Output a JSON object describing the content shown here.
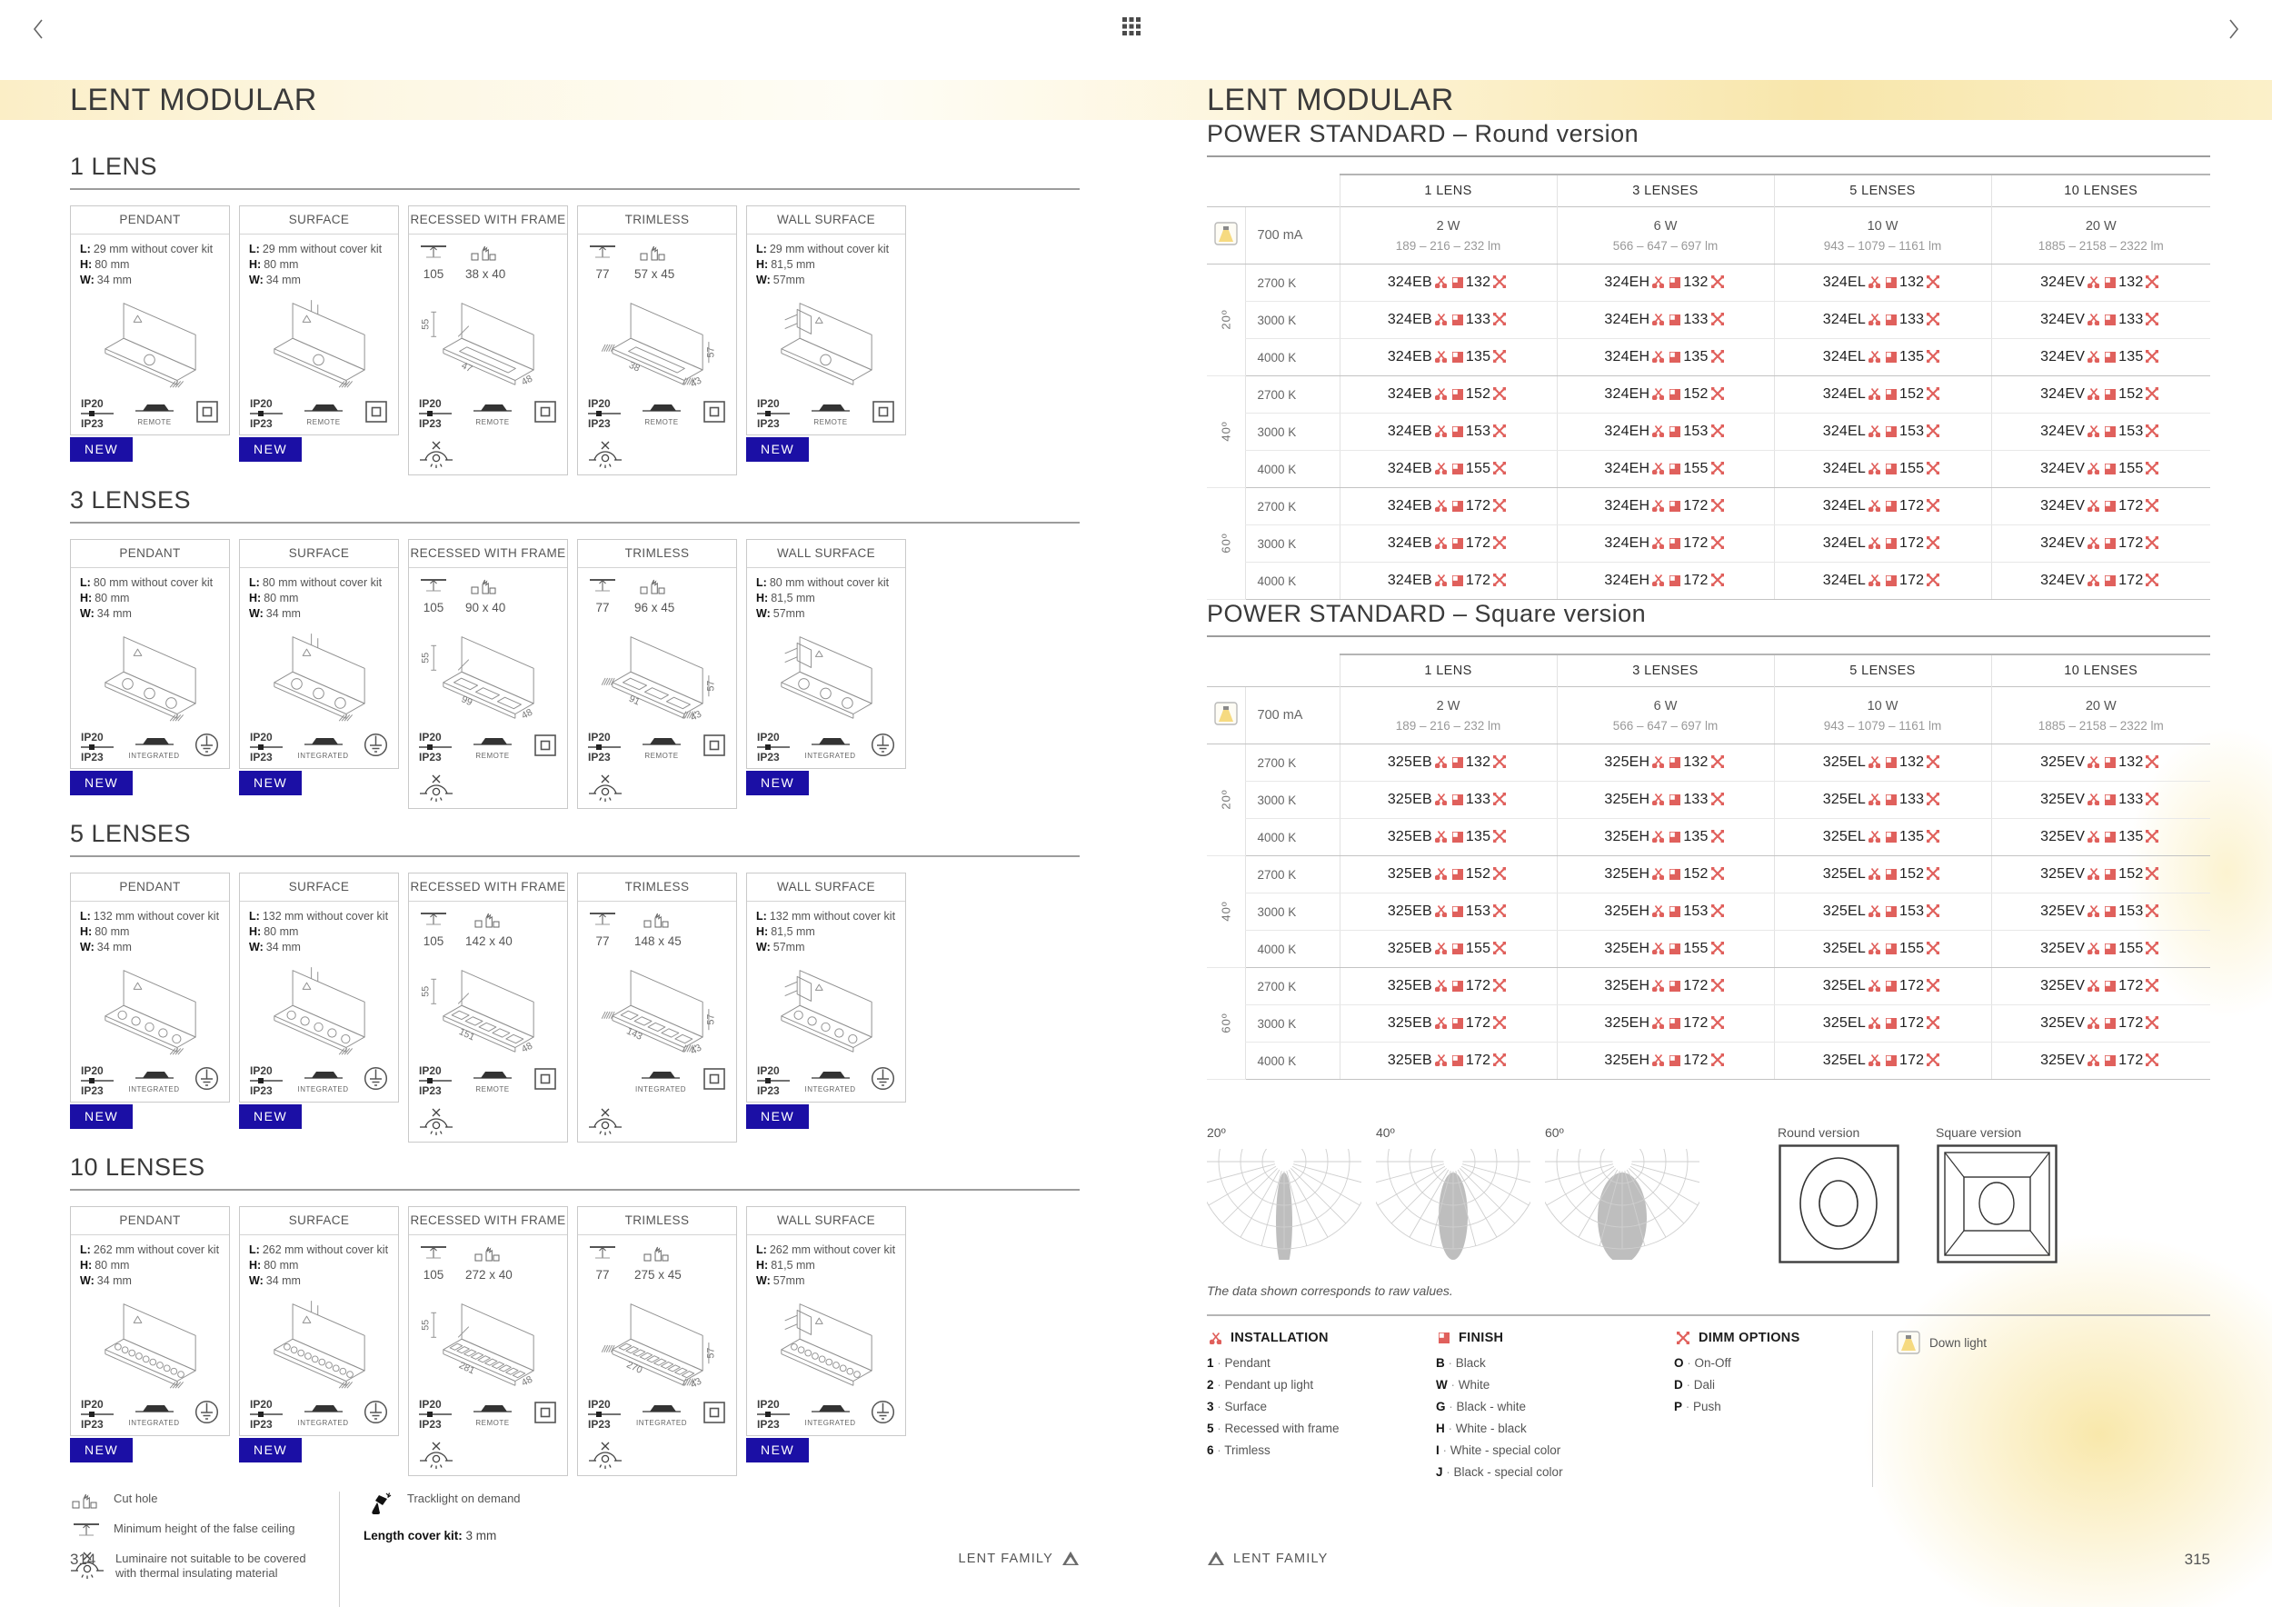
{
  "left_page": {
    "title": "LENT MODULAR",
    "page_number": "314",
    "footer_brand": "LENT FAMILY",
    "new_badge_label": "NEW",
    "ip_rating": {
      "top": "IP20",
      "bottom": "IP23"
    },
    "sections": [
      {
        "heading": "1 LENS",
        "cards": [
          {
            "type": "PENDANT",
            "drawing": "pendant",
            "lenses": 1,
            "specs": [
              [
                "L:",
                "29 mm without cover kit"
              ],
              [
                "H:",
                "80 mm"
              ],
              [
                "W:",
                "34 mm"
              ]
            ],
            "ip": true,
            "driver": "REMOTE",
            "class_icon": "square",
            "new": true
          },
          {
            "type": "SURFACE",
            "drawing": "surface",
            "lenses": 1,
            "specs": [
              [
                "L:",
                "29 mm without cover kit"
              ],
              [
                "H:",
                "80 mm"
              ],
              [
                "W:",
                "34 mm"
              ]
            ],
            "ip": true,
            "driver": "REMOTE",
            "class_icon": "square",
            "new": true
          },
          {
            "type": "RECESSED WITH FRAME",
            "drawing": "recessed",
            "lenses": 1,
            "mount": {
              "min_height": "105",
              "cut_hole": "38 x 40"
            },
            "dims": {
              "h": "55",
              "len": "47",
              "depth": "48"
            },
            "ip": true,
            "driver": "REMOTE",
            "class_icon": "square",
            "no_cover": true
          },
          {
            "type": "TRIMLESS",
            "drawing": "trimless",
            "lenses": 1,
            "mount": {
              "min_height": "77",
              "cut_hole": "57 x 45"
            },
            "dims": {
              "len": "38",
              "h": "57",
              "depth": "43"
            },
            "ip": true,
            "driver": "REMOTE",
            "class_icon": "square",
            "no_cover": true
          },
          {
            "type": "WALL SURFACE",
            "drawing": "wall",
            "lenses": 1,
            "specs": [
              [
                "L:",
                "29 mm without cover kit"
              ],
              [
                "H:",
                "81,5 mm"
              ],
              [
                "W:",
                "57mm"
              ]
            ],
            "ip": true,
            "driver": "REMOTE",
            "class_icon": "square",
            "new": true
          }
        ]
      },
      {
        "heading": "3 LENSES",
        "cards": [
          {
            "type": "PENDANT",
            "drawing": "pendant",
            "lenses": 3,
            "specs": [
              [
                "L:",
                "80 mm without cover kit"
              ],
              [
                "H:",
                "80 mm"
              ],
              [
                "W:",
                "34 mm"
              ]
            ],
            "ip": true,
            "driver": "INTEGRATED",
            "class_icon": "ground",
            "new": true
          },
          {
            "type": "SURFACE",
            "drawing": "surface",
            "lenses": 3,
            "specs": [
              [
                "L:",
                "80 mm without cover kit"
              ],
              [
                "H:",
                "80 mm"
              ],
              [
                "W:",
                "34 mm"
              ]
            ],
            "ip": true,
            "driver": "INTEGRATED",
            "class_icon": "ground",
            "new": true
          },
          {
            "type": "RECESSED WITH FRAME",
            "drawing": "recessed",
            "lenses": 3,
            "mount": {
              "min_height": "105",
              "cut_hole": "90 x 40"
            },
            "dims": {
              "h": "55",
              "len": "99",
              "depth": "48"
            },
            "ip": true,
            "driver": "REMOTE",
            "class_icon": "square",
            "no_cover": true
          },
          {
            "type": "TRIMLESS",
            "drawing": "trimless",
            "lenses": 3,
            "mount": {
              "min_height": "77",
              "cut_hole": "96 x 45"
            },
            "dims": {
              "len": "91",
              "h": "57",
              "depth": "43"
            },
            "ip": true,
            "driver": "REMOTE",
            "class_icon": "square",
            "no_cover": true
          },
          {
            "type": "WALL SURFACE",
            "drawing": "wall",
            "lenses": 3,
            "specs": [
              [
                "L:",
                "80 mm without cover kit"
              ],
              [
                "H:",
                "81,5 mm"
              ],
              [
                "W:",
                "57mm"
              ]
            ],
            "ip": true,
            "driver": "INTEGRATED",
            "class_icon": "ground",
            "new": true
          }
        ]
      },
      {
        "heading": "5 LENSES",
        "cards": [
          {
            "type": "PENDANT",
            "drawing": "pendant",
            "lenses": 5,
            "specs": [
              [
                "L:",
                "132 mm without cover kit"
              ],
              [
                "H:",
                "80 mm"
              ],
              [
                "W:",
                "34 mm"
              ]
            ],
            "ip": true,
            "driver": "INTEGRATED",
            "class_icon": "ground",
            "new": true
          },
          {
            "type": "SURFACE",
            "drawing": "surface",
            "lenses": 5,
            "specs": [
              [
                "L:",
                "132 mm without cover kit"
              ],
              [
                "H:",
                "80 mm"
              ],
              [
                "W:",
                "34 mm"
              ]
            ],
            "ip": true,
            "driver": "INTEGRATED",
            "class_icon": "ground",
            "new": true
          },
          {
            "type": "RECESSED WITH FRAME",
            "drawing": "recessed",
            "lenses": 5,
            "mount": {
              "min_height": "105",
              "cut_hole": "142 x 40"
            },
            "dims": {
              "h": "55",
              "len": "151",
              "depth": "48"
            },
            "ip": true,
            "driver": "REMOTE",
            "class_icon": "square",
            "no_cover": true
          },
          {
            "type": "TRIMLESS",
            "drawing": "trimless",
            "lenses": 5,
            "mount": {
              "min_height": "77",
              "cut_hole": "148 x 45"
            },
            "dims": {
              "len": "143",
              "h": "57",
              "depth": "43"
            },
            "ip": false,
            "driver": "INTEGRATED",
            "class_icon": "square",
            "no_cover": true
          },
          {
            "type": "WALL SURFACE",
            "drawing": "wall",
            "lenses": 5,
            "specs": [
              [
                "L:",
                "132 mm without cover kit"
              ],
              [
                "H:",
                "81,5 mm"
              ],
              [
                "W:",
                "57mm"
              ]
            ],
            "ip": true,
            "driver": "INTEGRATED",
            "class_icon": "ground",
            "new": true
          }
        ]
      },
      {
        "heading": "10 LENSES",
        "cards": [
          {
            "type": "PENDANT",
            "drawing": "pendant",
            "lenses": 10,
            "specs": [
              [
                "L:",
                "262 mm without cover kit"
              ],
              [
                "H:",
                "80 mm"
              ],
              [
                "W:",
                "34 mm"
              ]
            ],
            "ip": true,
            "driver": "INTEGRATED",
            "class_icon": "ground",
            "new": true
          },
          {
            "type": "SURFACE",
            "drawing": "surface",
            "lenses": 10,
            "specs": [
              [
                "L:",
                "262 mm without cover kit"
              ],
              [
                "H:",
                "80 mm"
              ],
              [
                "W:",
                "34 mm"
              ]
            ],
            "ip": true,
            "driver": "INTEGRATED",
            "class_icon": "ground",
            "new": true
          },
          {
            "type": "RECESSED WITH FRAME",
            "drawing": "recessed",
            "lenses": 10,
            "mount": {
              "min_height": "105",
              "cut_hole": "272 x 40"
            },
            "dims": {
              "h": "55",
              "len": "281",
              "depth": "48"
            },
            "ip": true,
            "driver": "REMOTE",
            "class_icon": "square",
            "no_cover": true
          },
          {
            "type": "TRIMLESS",
            "drawing": "trimless",
            "lenses": 10,
            "mount": {
              "min_height": "77",
              "cut_hole": "275 x 45"
            },
            "dims": {
              "len": "270",
              "h": "57",
              "depth": "43"
            },
            "ip": true,
            "driver": "INTEGRATED",
            "class_icon": "square",
            "no_cover": true
          },
          {
            "type": "WALL SURFACE",
            "drawing": "wall",
            "lenses": 10,
            "specs": [
              [
                "L:",
                "262 mm without cover kit"
              ],
              [
                "H:",
                "81,5 mm"
              ],
              [
                "W:",
                "57mm"
              ]
            ],
            "ip": true,
            "driver": "INTEGRATED",
            "class_icon": "ground",
            "new": true
          }
        ]
      }
    ],
    "legend": {
      "items_left": [
        {
          "icon": "cut-hole",
          "label": "Cut hole"
        },
        {
          "icon": "min-height",
          "label": "Minimum height of the false ceiling"
        },
        {
          "icon": "no-cover",
          "label": "Luminaire not suitable to be covered with thermal insulating material"
        }
      ],
      "items_right": [
        {
          "icon": "tracklight",
          "label": "Tracklight on demand"
        }
      ],
      "cover_kit_label": "Length cover kit:",
      "cover_kit_value": " 3 mm"
    }
  },
  "right_page": {
    "title": "LENT MODULAR",
    "page_number": "315",
    "footer_brand": "LENT FAMILY",
    "footnote": "The data shown corresponds to raw values.",
    "tables": [
      {
        "heading": "POWER STANDARD – Round version",
        "lens_columns": [
          "1 LENS",
          "3 LENSES",
          "5 LENSES",
          "10 LENSES"
        ],
        "drive_current": "700 mA",
        "power_cells": [
          {
            "watt": "2 W",
            "lumens": "189 – 216 – 232 lm"
          },
          {
            "watt": "6 W",
            "lumens": "566 – 647 – 697 lm"
          },
          {
            "watt": "10 W",
            "lumens": "943 – 1079 – 1161 lm"
          },
          {
            "watt": "20 W",
            "lumens": "1885 – 2158 – 2322 lm"
          }
        ],
        "codes": [
          "324EB",
          "324EH",
          "324EL",
          "324EV"
        ],
        "groups": [
          {
            "angle": "20º",
            "rows": [
              {
                "cct": "2700 K",
                "suffix": "132"
              },
              {
                "cct": "3000 K",
                "suffix": "133"
              },
              {
                "cct": "4000 K",
                "suffix": "135"
              }
            ]
          },
          {
            "angle": "40º",
            "rows": [
              {
                "cct": "2700 K",
                "suffix": "152"
              },
              {
                "cct": "3000 K",
                "suffix": "153"
              },
              {
                "cct": "4000 K",
                "suffix": "155"
              }
            ]
          },
          {
            "angle": "60º",
            "rows": [
              {
                "cct": "2700 K",
                "suffix": "172"
              },
              {
                "cct": "3000 K",
                "suffix": "172"
              },
              {
                "cct": "4000 K",
                "suffix": "172"
              }
            ]
          }
        ]
      },
      {
        "heading": "POWER STANDARD – Square version",
        "lens_columns": [
          "1 LENS",
          "3 LENSES",
          "5 LENSES",
          "10 LENSES"
        ],
        "drive_current": "700 mA",
        "power_cells": [
          {
            "watt": "2 W",
            "lumens": "189 – 216 – 232 lm"
          },
          {
            "watt": "6 W",
            "lumens": "566 – 647 – 697 lm"
          },
          {
            "watt": "10 W",
            "lumens": "943 – 1079 – 1161 lm"
          },
          {
            "watt": "20 W",
            "lumens": "1885 – 2158 – 2322 lm"
          }
        ],
        "codes": [
          "325EB",
          "325EH",
          "325EL",
          "325EV"
        ],
        "groups": [
          {
            "angle": "20º",
            "rows": [
              {
                "cct": "2700 K",
                "suffix": "132"
              },
              {
                "cct": "3000 K",
                "suffix": "133"
              },
              {
                "cct": "4000 K",
                "suffix": "135"
              }
            ]
          },
          {
            "angle": "40º",
            "rows": [
              {
                "cct": "2700 K",
                "suffix": "152"
              },
              {
                "cct": "3000 K",
                "suffix": "153"
              },
              {
                "cct": "4000 K",
                "suffix": "155"
              }
            ]
          },
          {
            "angle": "60º",
            "rows": [
              {
                "cct": "2700 K",
                "suffix": "172"
              },
              {
                "cct": "3000 K",
                "suffix": "172"
              },
              {
                "cct": "4000 K",
                "suffix": "172"
              }
            ]
          }
        ]
      }
    ],
    "beams": [
      {
        "angle": "20º",
        "spread": "narrow"
      },
      {
        "angle": "40º",
        "spread": "medium"
      },
      {
        "angle": "60º",
        "spread": "wide"
      }
    ],
    "figures": [
      {
        "label": "Round version",
        "shape": "round"
      },
      {
        "label": "Square version",
        "shape": "square"
      }
    ],
    "options_legend": {
      "installation": {
        "title": "INSTALLATION",
        "items": [
          {
            "key": "1",
            "label": "Pendant"
          },
          {
            "key": "2",
            "label": "Pendant up light"
          },
          {
            "key": "3",
            "label": "Surface"
          },
          {
            "key": "5",
            "label": "Recessed with frame"
          },
          {
            "key": "6",
            "label": "Trimless"
          }
        ]
      },
      "finish": {
        "title": "FINISH",
        "items": [
          {
            "key": "B",
            "label": "Black"
          },
          {
            "key": "W",
            "label": "White"
          },
          {
            "key": "G",
            "label": "Black - white"
          },
          {
            "key": "H",
            "label": "White - black"
          },
          {
            "key": "I",
            "label": "White - special color"
          },
          {
            "key": "J",
            "label": "Black - special color"
          }
        ]
      },
      "dimm": {
        "title": "DIMM OPTIONS",
        "items": [
          {
            "key": "O",
            "label": "On-Off"
          },
          {
            "key": "D",
            "label": "Dali"
          },
          {
            "key": "P",
            "label": "Push"
          }
        ]
      },
      "downlight_label": "Down light"
    }
  },
  "colors": {
    "accent_red": "#e0605c",
    "badge_blue": "#1b0fa5",
    "band_yellow": "#f8e6ab",
    "downlight_yellow": "#f5d879"
  }
}
